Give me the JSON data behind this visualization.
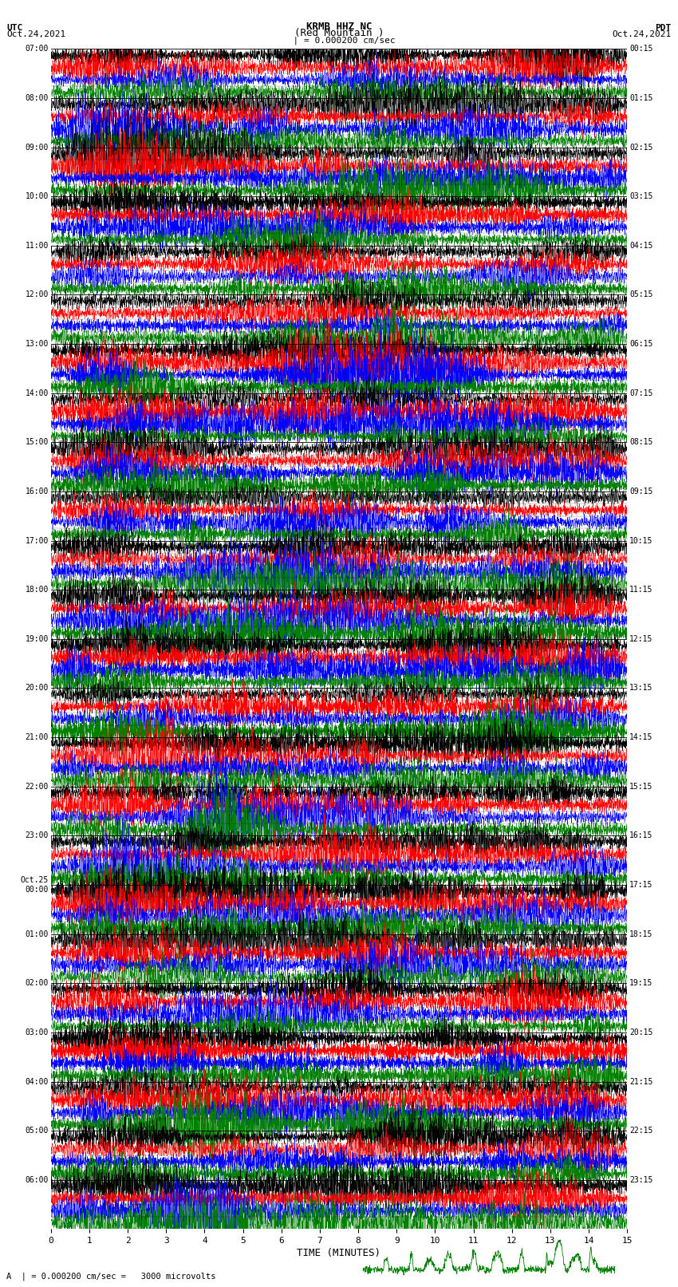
{
  "title_line1": "KRMB HHZ NC",
  "title_line2": "(Red Mountain )",
  "title_scale": "  | = 0.000200 cm/sec",
  "left_label_line1": "UTC",
  "left_label_line2": "Oct.24,2021",
  "right_label_line1": "PDT",
  "right_label_line2": "Oct.24,2021",
  "bottom_label": "TIME (MINUTES)",
  "bottom_note": "A  | = 0.000200 cm/sec =   3000 microvolts",
  "utc_times": [
    "07:00",
    "08:00",
    "09:00",
    "10:00",
    "11:00",
    "12:00",
    "13:00",
    "14:00",
    "15:00",
    "16:00",
    "17:00",
    "18:00",
    "19:00",
    "20:00",
    "21:00",
    "22:00",
    "23:00",
    "Oct.25\n00:00",
    "01:00",
    "02:00",
    "03:00",
    "04:00",
    "05:00",
    "06:00"
  ],
  "pdt_times": [
    "00:15",
    "01:15",
    "02:15",
    "03:15",
    "04:15",
    "05:15",
    "06:15",
    "07:15",
    "08:15",
    "09:15",
    "10:15",
    "11:15",
    "12:15",
    "13:15",
    "14:15",
    "15:15",
    "16:15",
    "17:15",
    "18:15",
    "19:15",
    "20:15",
    "21:15",
    "22:15",
    "23:15"
  ],
  "sub_colors": [
    "black",
    "red",
    "blue",
    "green"
  ],
  "bg_color": "white",
  "n_traces": 24,
  "samples_per_trace": 3000,
  "n_sub": 4,
  "x_min": 0,
  "x_max": 15,
  "x_ticks": [
    0,
    1,
    2,
    3,
    4,
    5,
    6,
    7,
    8,
    9,
    10,
    11,
    12,
    13,
    14,
    15
  ]
}
